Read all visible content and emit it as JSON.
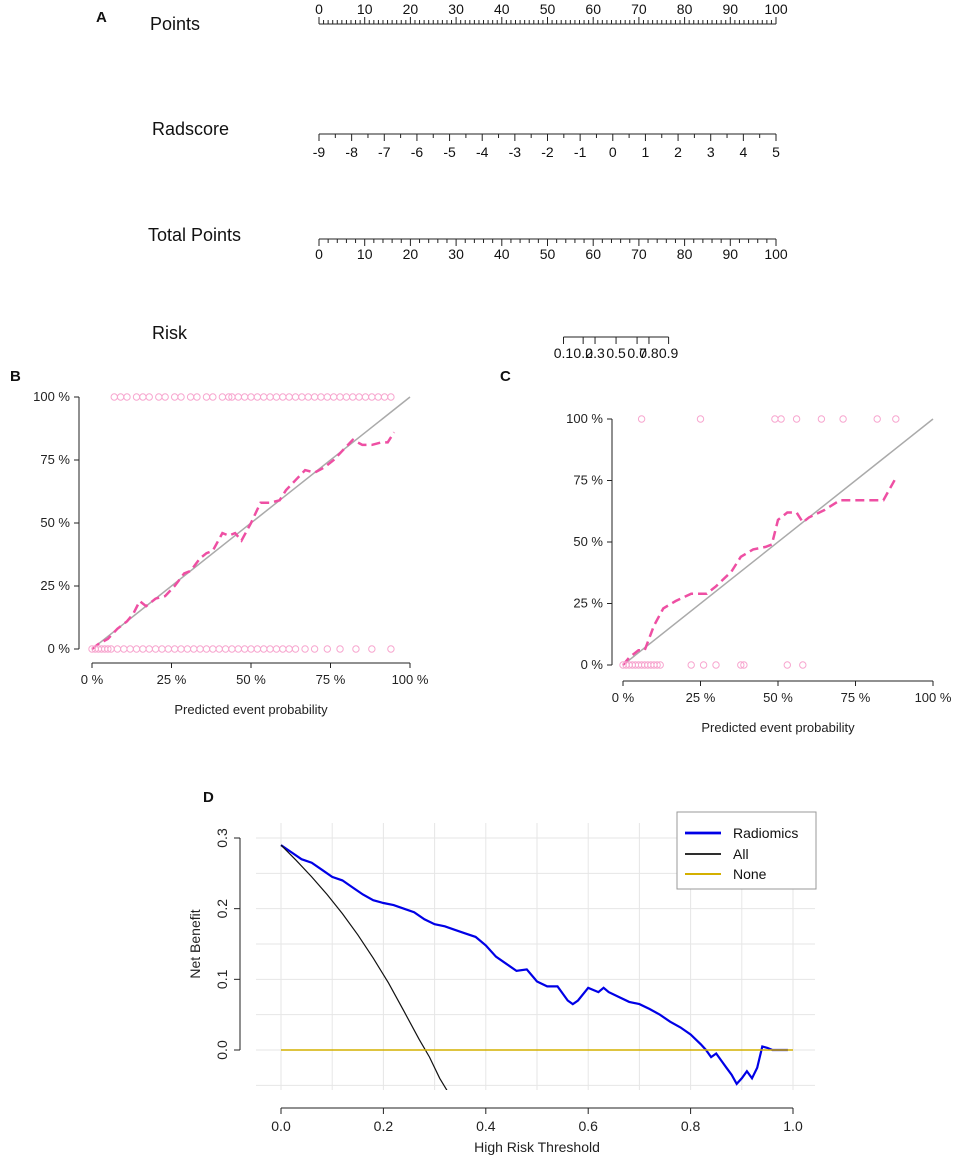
{
  "panels": {
    "a": "A",
    "b": "B",
    "c": "C",
    "d": "D"
  },
  "colors": {
    "axis": "#222222",
    "ideal_line": "#aaaaaa",
    "calibration": "#ee4fa3",
    "points": "#f7a6cf",
    "radiomics": "#0000e6",
    "all": "#111111",
    "none": "#d4b000",
    "grid": "#e6e6e6"
  },
  "chart_data": [
    {
      "type": "nomogram",
      "scales": [
        {
          "name": "Points",
          "range": [
            0,
            100
          ],
          "major": [
            0,
            10,
            20,
            30,
            40,
            50,
            60,
            70,
            80,
            90,
            100
          ],
          "labels": [
            "0",
            "10",
            "20",
            "30",
            "40",
            "50",
            "60",
            "70",
            "80",
            "90",
            "100"
          ],
          "minor_per_major": 10
        },
        {
          "name": "Radscore",
          "range": [
            -9,
            5
          ],
          "major": [
            -9,
            -8,
            -7,
            -6,
            -5,
            -4,
            -3,
            -2,
            -1,
            0,
            1,
            2,
            3,
            4,
            5
          ],
          "labels": [
            "-9",
            "-8",
            "-7",
            "-6",
            "-5",
            "-4",
            "-3",
            "-2",
            "-1",
            "0",
            "1",
            "2",
            "3",
            "4",
            "5"
          ],
          "minor_per_major": 2
        },
        {
          "name": "Total Points",
          "range": [
            0,
            100
          ],
          "major": [
            0,
            10,
            20,
            30,
            40,
            50,
            60,
            70,
            80,
            90,
            100
          ],
          "labels": [
            "0",
            "10",
            "20",
            "30",
            "40",
            "50",
            "60",
            "70",
            "80",
            "90",
            "100"
          ],
          "minor_per_major": 5
        },
        {
          "name": "Risk",
          "positions_total_points": [
            53.5,
            57.8,
            60.4,
            65.0,
            69.6,
            72.2,
            76.5
          ],
          "labels": [
            "0.1",
            "0.2",
            "0.3",
            "0.5",
            "0.7",
            "0.8",
            "0.9"
          ]
        }
      ]
    },
    {
      "type": "scatter",
      "title": "",
      "xlabel": "Predicted event probability",
      "ylabel": "",
      "xlim": [
        0,
        1
      ],
      "ylim": [
        0,
        1
      ],
      "xticks": [
        0,
        0.25,
        0.5,
        0.75,
        1
      ],
      "yticks": [
        0,
        0.25,
        0.5,
        0.75,
        1
      ],
      "xticklabels": [
        "0 %",
        "25 %",
        "50 %",
        "75 %",
        "100 %"
      ],
      "yticklabels": [
        "0 %",
        "25 %",
        "50 %",
        "75 %",
        "100 %"
      ],
      "series": [
        {
          "name": "ideal",
          "style": "solid",
          "x": [
            0,
            1
          ],
          "y": [
            0,
            1
          ]
        },
        {
          "name": "calibration",
          "style": "dashed",
          "x": [
            0.0,
            0.02,
            0.05,
            0.08,
            0.11,
            0.13,
            0.15,
            0.17,
            0.2,
            0.23,
            0.26,
            0.29,
            0.31,
            0.34,
            0.36,
            0.38,
            0.41,
            0.43,
            0.45,
            0.47,
            0.5,
            0.53,
            0.56,
            0.59,
            0.61,
            0.64,
            0.67,
            0.7,
            0.73,
            0.76,
            0.79,
            0.82,
            0.85,
            0.88,
            0.91,
            0.93,
            0.95
          ],
          "y": [
            0.0,
            0.02,
            0.04,
            0.08,
            0.11,
            0.14,
            0.19,
            0.17,
            0.2,
            0.21,
            0.25,
            0.3,
            0.31,
            0.36,
            0.38,
            0.39,
            0.46,
            0.45,
            0.46,
            0.43,
            0.5,
            0.58,
            0.58,
            0.59,
            0.63,
            0.67,
            0.71,
            0.7,
            0.72,
            0.75,
            0.79,
            0.83,
            0.81,
            0.81,
            0.82,
            0.82,
            0.86
          ]
        },
        {
          "name": "events",
          "style": "points",
          "x": [
            0.07,
            0.09,
            0.11,
            0.14,
            0.16,
            0.18,
            0.21,
            0.23,
            0.26,
            0.28,
            0.31,
            0.33,
            0.36,
            0.38,
            0.41,
            0.43,
            0.44,
            0.46,
            0.48,
            0.5,
            0.52,
            0.54,
            0.56,
            0.58,
            0.6,
            0.62,
            0.64,
            0.66,
            0.68,
            0.7,
            0.72,
            0.74,
            0.76,
            0.78,
            0.8,
            0.82,
            0.84,
            0.86,
            0.88,
            0.9,
            0.92,
            0.94
          ],
          "y": [
            1,
            1,
            1,
            1,
            1,
            1,
            1,
            1,
            1,
            1,
            1,
            1,
            1,
            1,
            1,
            1,
            1,
            1,
            1,
            1,
            1,
            1,
            1,
            1,
            1,
            1,
            1,
            1,
            1,
            1,
            1,
            1,
            1,
            1,
            1,
            1,
            1,
            1,
            1,
            1,
            1,
            1
          ]
        },
        {
          "name": "non-events",
          "style": "points",
          "x": [
            0.0,
            0.01,
            0.02,
            0.03,
            0.04,
            0.05,
            0.06,
            0.08,
            0.1,
            0.12,
            0.14,
            0.16,
            0.18,
            0.2,
            0.22,
            0.24,
            0.26,
            0.28,
            0.3,
            0.32,
            0.34,
            0.36,
            0.38,
            0.4,
            0.42,
            0.44,
            0.46,
            0.48,
            0.5,
            0.52,
            0.54,
            0.56,
            0.58,
            0.6,
            0.62,
            0.64,
            0.67,
            0.7,
            0.74,
            0.78,
            0.83,
            0.88,
            0.94
          ],
          "y": [
            0,
            0,
            0,
            0,
            0,
            0,
            0,
            0,
            0,
            0,
            0,
            0,
            0,
            0,
            0,
            0,
            0,
            0,
            0,
            0,
            0,
            0,
            0,
            0,
            0,
            0,
            0,
            0,
            0,
            0,
            0,
            0,
            0,
            0,
            0,
            0,
            0,
            0,
            0,
            0,
            0,
            0,
            0
          ]
        }
      ]
    },
    {
      "type": "scatter",
      "title": "",
      "xlabel": "Predicted event probability",
      "ylabel": "",
      "xlim": [
        0,
        1
      ],
      "ylim": [
        0,
        1
      ],
      "xticks": [
        0,
        0.25,
        0.5,
        0.75,
        1
      ],
      "yticks": [
        0,
        0.25,
        0.5,
        0.75,
        1
      ],
      "xticklabels": [
        "0 %",
        "25 %",
        "50 %",
        "75 %",
        "100 %"
      ],
      "yticklabels": [
        "0 %",
        "25 %",
        "50 %",
        "75 %",
        "100 %"
      ],
      "series": [
        {
          "name": "ideal",
          "style": "solid",
          "x": [
            0,
            1
          ],
          "y": [
            0,
            1
          ]
        },
        {
          "name": "calibration",
          "style": "dashed",
          "x": [
            0.0,
            0.02,
            0.05,
            0.07,
            0.1,
            0.13,
            0.17,
            0.22,
            0.27,
            0.3,
            0.35,
            0.38,
            0.42,
            0.46,
            0.48,
            0.5,
            0.53,
            0.56,
            0.58,
            0.6,
            0.65,
            0.7,
            0.75,
            0.8,
            0.84,
            0.88
          ],
          "y": [
            0.0,
            0.03,
            0.06,
            0.06,
            0.16,
            0.23,
            0.26,
            0.29,
            0.29,
            0.32,
            0.38,
            0.44,
            0.47,
            0.48,
            0.49,
            0.59,
            0.62,
            0.62,
            0.58,
            0.6,
            0.63,
            0.67,
            0.67,
            0.67,
            0.67,
            0.76
          ]
        },
        {
          "name": "events",
          "style": "points",
          "x": [
            0.06,
            0.25,
            0.49,
            0.51,
            0.56,
            0.64,
            0.71,
            0.82,
            0.88
          ],
          "y": [
            1,
            1,
            1,
            1,
            1,
            1,
            1,
            1,
            1
          ]
        },
        {
          "name": "non-events",
          "style": "points",
          "x": [
            0.0,
            0.01,
            0.02,
            0.03,
            0.04,
            0.05,
            0.06,
            0.07,
            0.08,
            0.09,
            0.1,
            0.11,
            0.12,
            0.22,
            0.26,
            0.3,
            0.38,
            0.39,
            0.53,
            0.58
          ],
          "y": [
            0,
            0,
            0,
            0,
            0,
            0,
            0,
            0,
            0,
            0,
            0,
            0,
            0,
            0,
            0,
            0,
            0,
            0,
            0,
            0
          ]
        }
      ]
    },
    {
      "type": "line",
      "title": "",
      "xlabel": "High Risk Threshold",
      "ylabel": "Net Benefit",
      "xlim": [
        0,
        1
      ],
      "ylim": [
        -0.07,
        0.31
      ],
      "xticks": [
        0,
        0.2,
        0.4,
        0.6,
        0.8,
        1.0
      ],
      "xticklabels": [
        "0.0",
        "0.2",
        "0.4",
        "0.6",
        "0.8",
        "1.0"
      ],
      "yticks": [
        0,
        0.1,
        0.2,
        0.3
      ],
      "yticklabels": [
        "0.0",
        "0.1",
        "0.2",
        "0.3"
      ],
      "grid": true,
      "legend": "top-right",
      "series": [
        {
          "name": "Radiomics",
          "x": [
            0,
            0.02,
            0.04,
            0.06,
            0.08,
            0.1,
            0.12,
            0.14,
            0.16,
            0.18,
            0.2,
            0.22,
            0.24,
            0.26,
            0.28,
            0.3,
            0.32,
            0.34,
            0.36,
            0.38,
            0.4,
            0.42,
            0.44,
            0.46,
            0.48,
            0.5,
            0.52,
            0.54,
            0.56,
            0.57,
            0.58,
            0.6,
            0.62,
            0.63,
            0.64,
            0.66,
            0.68,
            0.7,
            0.72,
            0.74,
            0.76,
            0.78,
            0.8,
            0.82,
            0.83,
            0.84,
            0.85,
            0.86,
            0.87,
            0.88,
            0.89,
            0.9,
            0.91,
            0.92,
            0.93,
            0.94,
            0.95,
            0.96,
            0.97,
            0.98,
            0.99
          ],
          "y": [
            0.29,
            0.28,
            0.27,
            0.265,
            0.255,
            0.245,
            0.24,
            0.23,
            0.22,
            0.212,
            0.208,
            0.205,
            0.2,
            0.195,
            0.185,
            0.178,
            0.175,
            0.17,
            0.165,
            0.16,
            0.148,
            0.132,
            0.122,
            0.112,
            0.114,
            0.097,
            0.09,
            0.09,
            0.07,
            0.065,
            0.07,
            0.088,
            0.082,
            0.088,
            0.082,
            0.075,
            0.068,
            0.065,
            0.058,
            0.05,
            0.04,
            0.032,
            0.022,
            0.008,
            0.0,
            -0.01,
            -0.005,
            -0.015,
            -0.025,
            -0.035,
            -0.048,
            -0.04,
            -0.03,
            -0.04,
            -0.025,
            0.005,
            0.003,
            0.0,
            0.0,
            0.0,
            0.0
          ]
        },
        {
          "name": "All",
          "x": [
            0,
            0.03,
            0.06,
            0.09,
            0.12,
            0.15,
            0.18,
            0.21,
            0.24,
            0.27,
            0.29,
            0.31,
            0.335
          ],
          "y": [
            0.29,
            0.268,
            0.245,
            0.22,
            0.193,
            0.163,
            0.13,
            0.095,
            0.055,
            0.015,
            -0.01,
            -0.04,
            -0.07
          ]
        },
        {
          "name": "None",
          "x": [
            0,
            1
          ],
          "y": [
            0,
            0
          ]
        }
      ]
    }
  ]
}
